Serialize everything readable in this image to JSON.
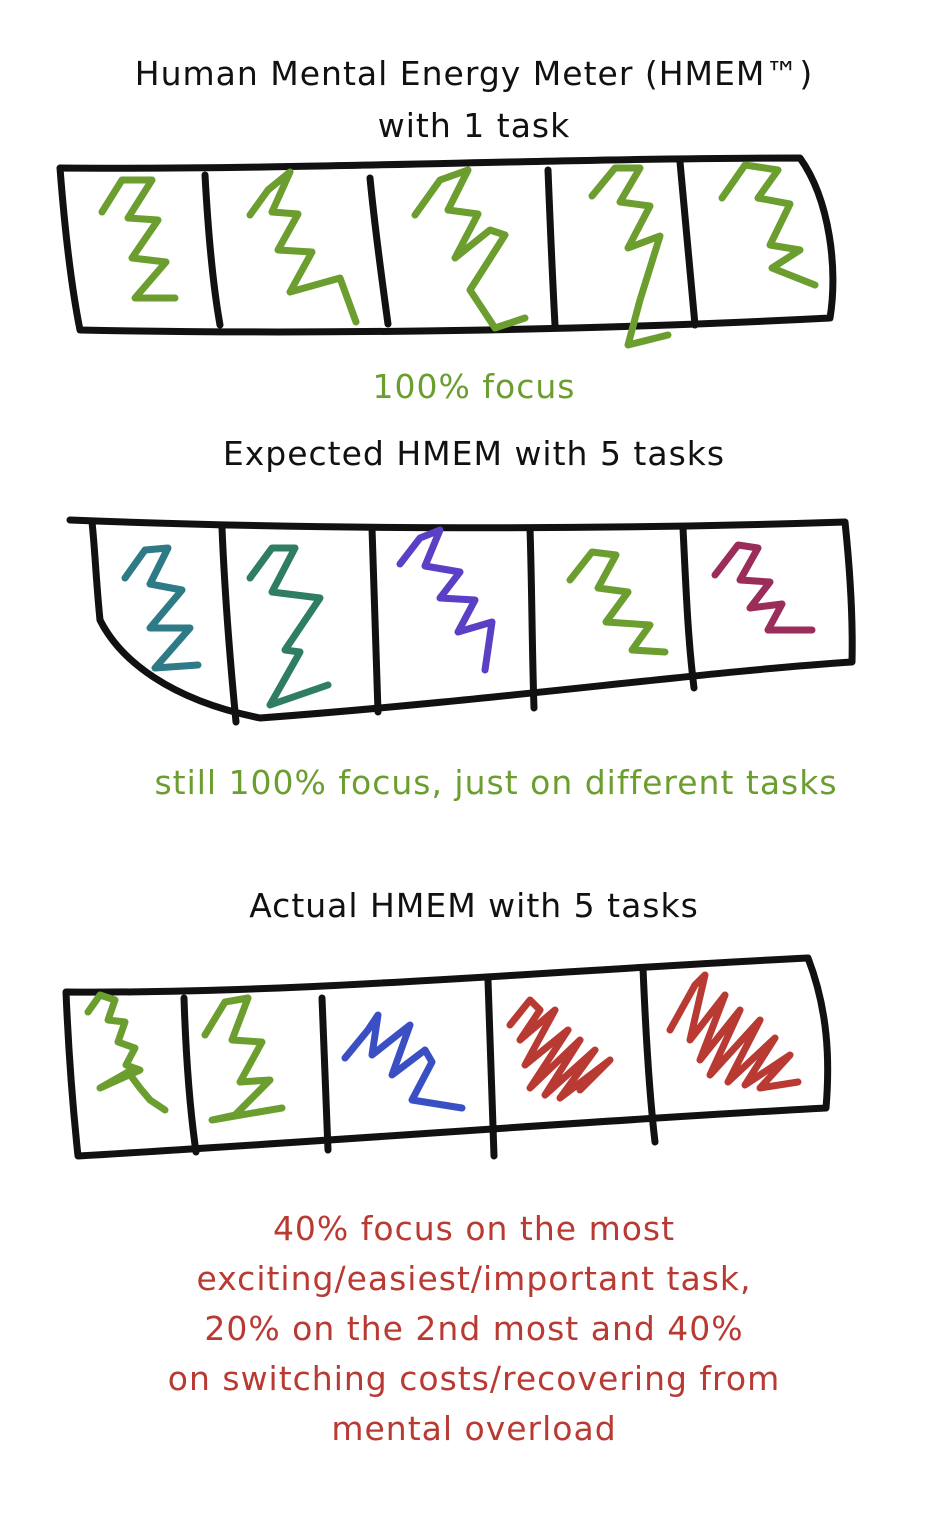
{
  "section1": {
    "title_line1": "Human Mental Energy Meter (HMEM™)",
    "title_line2": "with 1 task",
    "caption": "100% focus",
    "caption_color": "#6b9e2f"
  },
  "section2": {
    "title": "Expected HMEM with 5 tasks",
    "caption": "still 100% focus, just on different tasks",
    "caption_color": "#6b9e2f",
    "scribble_colors": [
      "#2e7a86",
      "#2f7d62",
      "#5b3fc4",
      "#6b9e2f",
      "#9b2d5a"
    ]
  },
  "section3": {
    "title": "Actual HMEM with 5 tasks",
    "caption_lines": [
      "40% focus on the most",
      "exciting/easiest/important task,",
      "20% on the 2nd most and 40%",
      "on switching costs/recovering from",
      "mental overload"
    ],
    "caption_color": "#b83a33",
    "scribble_colors": [
      "#6b9e2f",
      "#6b9e2f",
      "#3b4fc4",
      "#b83a33",
      "#b83a33"
    ]
  },
  "meter_border_color": "#111111"
}
